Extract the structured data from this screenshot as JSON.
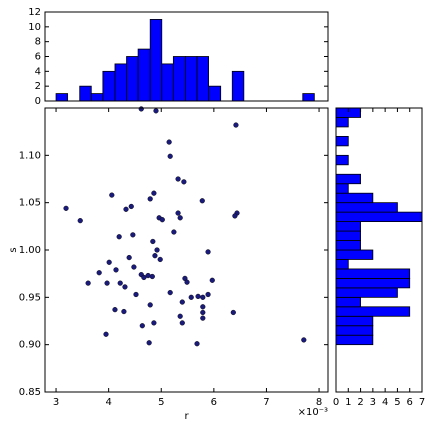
{
  "chart_data": [
    {
      "type": "scatter",
      "xlabel": "r",
      "ylabel": "s",
      "offset_text": "×10⁻³",
      "color": "#1a1a7a",
      "xlim": [
        2.79,
        8.17
      ],
      "ylim": [
        0.85,
        1.15
      ],
      "xticks": [
        3,
        4,
        5,
        6,
        7,
        8
      ],
      "yticks": [
        0.85,
        {
          "value": 0.9,
          "label": "0.90"
        },
        0.95,
        {
          "value": 1,
          "label": "1.00"
        },
        1.05,
        {
          "value": 1.1,
          "label": "1.10"
        }
      ],
      "x": [
        4.62,
        4.9,
        5.15,
        5.17,
        6.42,
        5.32,
        5.43,
        5.78,
        3.19,
        3.46,
        4.06,
        4.33,
        4.43,
        4.79,
        4.86,
        5.32,
        5.36,
        4.96,
        5.02,
        4.2,
        4.46,
        4.84,
        4.92,
        4.88,
        4.98,
        6.44,
        6.4,
        5.89,
        3.61,
        3.82,
        4.01,
        4.14,
        4.48,
        4.22,
        4.31,
        4.62,
        4.75,
        4.67,
        4.83,
        5.45,
        5.49,
        5.57,
        5.7,
        5.79,
        5.89,
        3.97,
        4.52,
        4.79,
        5.17,
        5.4,
        5.36,
        5.4,
        5.79,
        5.79,
        5.79,
        4.12,
        4.29,
        4.64,
        4.86,
        6.37,
        3.95,
        4.77,
        5.68,
        7.71,
        5.97,
        4.39,
        5.24
      ],
      "y": [
        1.149,
        1.147,
        1.114,
        1.099,
        1.132,
        1.075,
        1.072,
        1.052,
        1.044,
        1.031,
        1.058,
        1.043,
        1.046,
        1.054,
        1.06,
        1.039,
        1.034,
        1.034,
        1.032,
        1.014,
        1.016,
        1.009,
        1.0,
        0.994,
        0.99,
        1.039,
        1.036,
        0.998,
        0.965,
        0.976,
        0.987,
        0.979,
        0.982,
        0.965,
        0.961,
        0.974,
        0.973,
        0.971,
        0.972,
        0.97,
        0.966,
        0.95,
        0.951,
        0.95,
        0.953,
        0.965,
        0.953,
        0.942,
        0.955,
        0.945,
        0.93,
        0.923,
        0.94,
        0.934,
        0.928,
        0.937,
        0.935,
        0.92,
        0.923,
        0.934,
        0.911,
        0.902,
        0.901,
        0.905,
        0.968,
        0.992,
        1.019
      ]
    },
    {
      "type": "histogram",
      "color": "#0000ff",
      "xlim": [
        2.79,
        8.17
      ],
      "ylim": [
        0,
        12
      ],
      "yticks": [
        0,
        2,
        4,
        6,
        8,
        10,
        12
      ],
      "bins": [
        3.0,
        3.22,
        3.45,
        3.67,
        3.89,
        4.12,
        4.34,
        4.56,
        4.79,
        5.01,
        5.23,
        5.46,
        5.68,
        5.9,
        6.13,
        6.35,
        6.57,
        6.8,
        7.02,
        7.24,
        7.47,
        7.69,
        7.91
      ],
      "values": [
        1,
        0,
        2,
        1,
        4,
        5,
        6,
        7,
        11,
        5,
        6,
        6,
        6,
        2,
        0,
        4,
        0,
        0,
        0,
        0,
        0,
        1
      ]
    },
    {
      "type": "histogram",
      "orientation": "horizontal",
      "color": "#0000ff",
      "xlim": [
        0,
        7
      ],
      "ylim": [
        0.85,
        1.15
      ],
      "xticks": [
        0,
        1,
        2,
        3,
        4,
        5,
        6,
        7
      ],
      "bins": [
        0.9,
        0.91,
        0.92,
        0.93,
        0.94,
        0.95,
        0.96,
        0.97,
        0.98,
        0.99,
        1.0,
        1.01,
        1.02,
        1.03,
        1.04,
        1.05,
        1.06,
        1.07,
        1.08,
        1.09,
        1.1,
        1.11,
        1.12,
        1.13,
        1.14,
        1.15
      ],
      "values": [
        3,
        3,
        3,
        6,
        2,
        5,
        6,
        6,
        1,
        3,
        2,
        2,
        2,
        7,
        5,
        3,
        1,
        2,
        0,
        1,
        0,
        1,
        0,
        1,
        2
      ]
    }
  ]
}
